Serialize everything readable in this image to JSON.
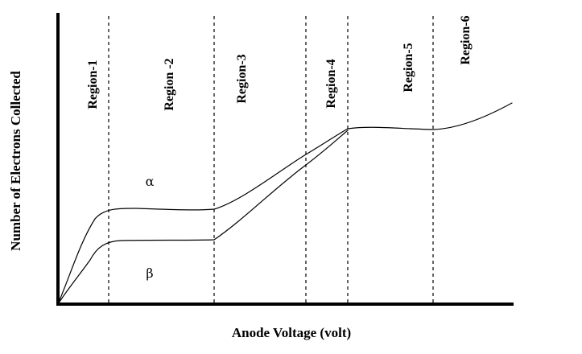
{
  "axes": {
    "x_title": "Anode Voltage (volt)",
    "y_title": "Number of Electrons Collected"
  },
  "regions": [
    {
      "label": "Region-1"
    },
    {
      "label": "Region -2"
    },
    {
      "label": "Region-3"
    },
    {
      "label": "Region-4"
    },
    {
      "label": "Region-5"
    },
    {
      "label": "Region-6"
    }
  ],
  "curves": [
    {
      "label": "α"
    },
    {
      "label": "β"
    }
  ]
}
